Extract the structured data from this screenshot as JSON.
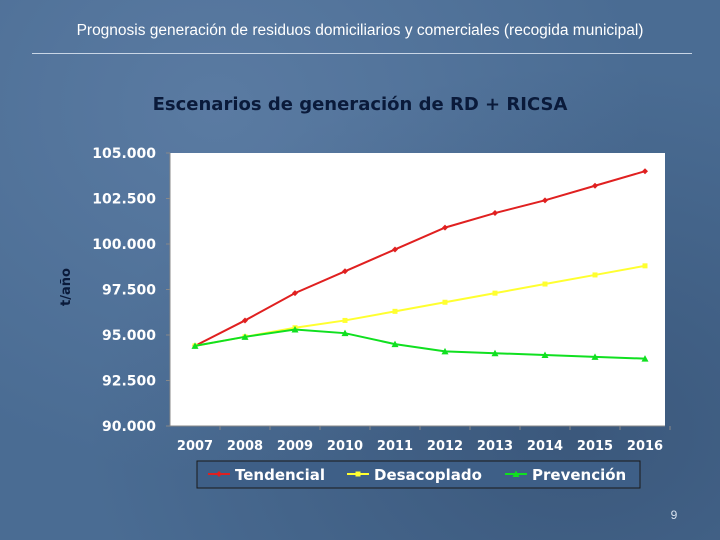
{
  "slide": {
    "title": "Prognosis generación de residuos domiciliarios y comerciales (recogida municipal)",
    "page_number": "9"
  },
  "chart_data": {
    "type": "line",
    "title": "Escenarios de generación de RD + RICSA",
    "xlabel": "",
    "ylabel": "t/año",
    "ylim": [
      90000,
      105000
    ],
    "yticks": [
      90000,
      92500,
      95000,
      97500,
      100000,
      102500,
      105000
    ],
    "ytick_labels": [
      "90.000",
      "92.500",
      "95.000",
      "97.500",
      "100.000",
      "102.500",
      "105.000"
    ],
    "categories": [
      "2007",
      "2008",
      "2009",
      "2010",
      "2011",
      "2012",
      "2013",
      "2014",
      "2015",
      "2016"
    ],
    "grid": "none",
    "legend_position": "bottom",
    "series": [
      {
        "name": "Tendencial",
        "color": "#e02020",
        "marker": "diamond",
        "values": [
          94400,
          95800,
          97300,
          98500,
          99700,
          100900,
          101700,
          102400,
          103200,
          104000
        ]
      },
      {
        "name": "Desacoplado",
        "color": "#ffff30",
        "marker": "square",
        "values": [
          94400,
          94900,
          95400,
          95800,
          96300,
          96800,
          97300,
          97800,
          98300,
          98800
        ]
      },
      {
        "name": "Prevención",
        "color": "#10e020",
        "marker": "triangle",
        "values": [
          94400,
          94900,
          95300,
          95100,
          94500,
          94100,
          94000,
          93900,
          93800,
          93700
        ]
      }
    ]
  }
}
